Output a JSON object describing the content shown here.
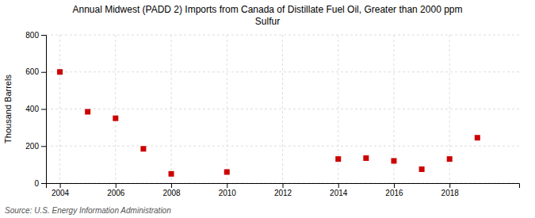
{
  "chart_data": {
    "type": "scatter",
    "title": "Annual Midwest (PADD 2) Imports from Canada of Distillate Fuel Oil, Greater than 2000 ppm\nSulfur",
    "ylabel": "Thousand Barrels",
    "source": "Source: U.S. Energy Information Administration",
    "x": [
      2004,
      2005,
      2006,
      2007,
      2008,
      2010,
      2014,
      2015,
      2016,
      2017,
      2018,
      2019
    ],
    "values": [
      600,
      385,
      350,
      185,
      50,
      60,
      130,
      135,
      120,
      75,
      130,
      245
    ],
    "color": "#cc0000",
    "marker": "square",
    "xlim": [
      2003.5,
      2020.5
    ],
    "ylim": [
      0,
      800
    ],
    "xticks": [
      2004,
      2006,
      2008,
      2010,
      2012,
      2014,
      2016,
      2018
    ],
    "yticks": [
      0,
      200,
      400,
      600,
      800
    ],
    "grid": true
  }
}
